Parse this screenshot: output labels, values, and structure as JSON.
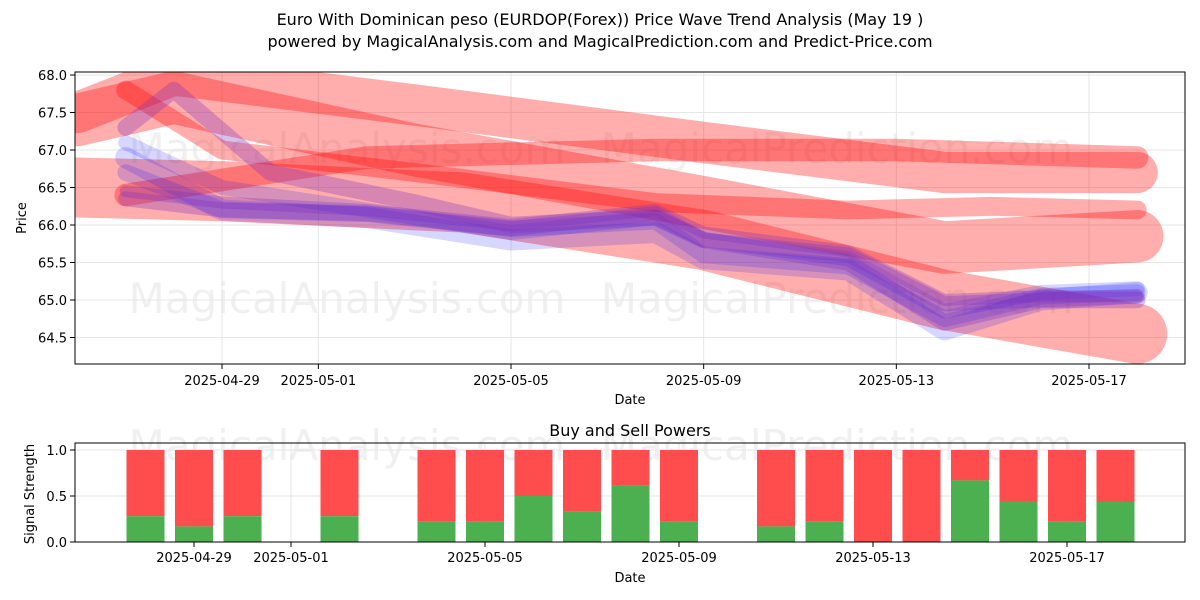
{
  "header": {
    "title": "Euro With Dominican peso (EURDOP(Forex)) Price Wave Trend Analysis (May 19 )",
    "subtitle": "powered by MagicalAnalysis.com and MagicalPrediction.com and Predict-Price.com"
  },
  "watermarks": [
    "MagicalAnalysis.com",
    "MagicalPrediction.com"
  ],
  "colors": {
    "red_band": "#ff0000",
    "blue_band": "#0000ff",
    "purple_band": "#7b2fbf",
    "buy": "#4caf50",
    "sell": "#ff4c4c",
    "grid": "#e6e6e6"
  },
  "chart_data": [
    {
      "type": "area",
      "title": "",
      "xlabel": "Date",
      "ylabel": "Price",
      "x_ticks": [
        "2025-04-29",
        "2025-05-01",
        "2025-05-05",
        "2025-05-09",
        "2025-05-13",
        "2025-05-17"
      ],
      "y_ticks": [
        "64.5",
        "65.0",
        "65.5",
        "66.0",
        "66.5",
        "67.0",
        "67.5",
        "68.0"
      ],
      "ylim": [
        64.15,
        68.05
      ],
      "xlim": [
        "2025-04-26",
        "2025-05-18"
      ],
      "grid": true,
      "red_bands": [
        {
          "x": [
            "2025-04-26",
            "2025-04-28",
            "2025-05-03",
            "2025-05-09",
            "2025-05-14",
            "2025-05-18"
          ],
          "y": [
            67.5,
            68.0,
            67.6,
            67.1,
            66.7,
            66.7
          ],
          "width": 0.55
        },
        {
          "x": [
            "2025-04-26",
            "2025-04-28",
            "2025-05-03",
            "2025-05-09",
            "2025-05-14",
            "2025-05-18"
          ],
          "y": [
            67.4,
            67.7,
            67.0,
            66.3,
            65.7,
            65.85
          ],
          "width": 0.7
        },
        {
          "x": [
            "2025-04-26",
            "2025-04-29",
            "2025-05-04",
            "2025-05-09",
            "2025-05-14",
            "2025-05-18"
          ],
          "y": [
            66.5,
            66.45,
            66.3,
            65.8,
            65.0,
            64.55
          ],
          "width": 0.8
        },
        {
          "x": [
            "2025-04-27",
            "2025-04-29",
            "2025-05-03",
            "2025-05-08",
            "2025-05-12",
            "2025-05-15",
            "2025-05-18"
          ],
          "y": [
            67.8,
            67.0,
            66.7,
            66.3,
            66.2,
            66.25,
            66.2
          ],
          "width": 0.25
        },
        {
          "x": [
            "2025-04-27",
            "2025-05-02",
            "2025-05-08",
            "2025-05-13",
            "2025-05-18"
          ],
          "y": [
            66.4,
            66.9,
            67.0,
            67.0,
            66.9
          ],
          "width": 0.3
        }
      ],
      "blue_bands": [
        {
          "x": [
            "2025-04-27",
            "2025-04-29",
            "2025-05-02",
            "2025-05-05",
            "2025-05-08",
            "2025-05-09",
            "2025-05-12",
            "2025-05-14",
            "2025-05-16",
            "2025-05-18"
          ],
          "y": [
            66.9,
            66.2,
            66.1,
            65.8,
            65.9,
            65.55,
            65.4,
            64.6,
            65.0,
            65.1
          ],
          "width": 0.28
        },
        {
          "x": [
            "2025-04-27",
            "2025-04-29",
            "2025-05-02",
            "2025-05-05",
            "2025-05-08",
            "2025-05-09",
            "2025-05-12",
            "2025-05-14",
            "2025-05-16",
            "2025-05-18"
          ],
          "y": [
            66.7,
            66.2,
            66.15,
            65.95,
            66.05,
            65.6,
            65.45,
            64.75,
            65.05,
            65.1
          ],
          "width": 0.22
        },
        {
          "x": [
            "2025-04-27",
            "2025-04-29",
            "2025-05-02",
            "2025-05-05",
            "2025-05-08",
            "2025-05-09",
            "2025-05-12",
            "2025-05-14",
            "2025-05-16",
            "2025-05-18"
          ],
          "y": [
            67.1,
            66.5,
            66.2,
            65.9,
            66.1,
            65.8,
            65.55,
            64.85,
            65.1,
            65.15
          ],
          "width": 0.2
        }
      ],
      "purple_bands": [
        {
          "x": [
            "2025-04-27",
            "2025-04-29",
            "2025-05-02",
            "2025-05-05",
            "2025-05-08",
            "2025-05-09",
            "2025-05-12",
            "2025-05-14",
            "2025-05-16",
            "2025-05-18"
          ],
          "y": [
            66.35,
            66.2,
            66.15,
            65.95,
            66.15,
            65.8,
            65.6,
            64.95,
            65.0,
            65.05
          ],
          "width": 0.2
        },
        {
          "x": [
            "2025-04-27",
            "2025-04-28",
            "2025-04-30",
            "2025-05-03",
            "2025-05-05",
            "2025-05-08",
            "2025-05-09",
            "2025-05-12",
            "2025-05-14",
            "2025-05-16",
            "2025-05-18"
          ],
          "y": [
            67.3,
            67.8,
            66.7,
            66.3,
            66.0,
            66.1,
            65.8,
            65.5,
            64.7,
            65.0,
            65.0
          ],
          "width": 0.22
        },
        {
          "x": [
            "2025-04-27",
            "2025-04-29",
            "2025-05-02",
            "2025-05-05",
            "2025-05-08",
            "2025-05-09",
            "2025-05-12",
            "2025-05-14",
            "2025-05-16",
            "2025-05-18"
          ],
          "y": [
            66.45,
            66.3,
            66.2,
            66.0,
            66.2,
            65.9,
            65.65,
            65.0,
            65.05,
            65.05
          ],
          "width": 0.16
        }
      ]
    },
    {
      "type": "bar",
      "title": "Buy and Sell Powers",
      "xlabel": "Date",
      "ylabel": "Signal Strength",
      "x_ticks": [
        "2025-04-29",
        "2025-05-01",
        "2025-05-05",
        "2025-05-09",
        "2025-05-13",
        "2025-05-17"
      ],
      "y_ticks": [
        "0.0",
        "0.5",
        "1.0"
      ],
      "ylim": [
        0,
        1.07
      ],
      "grid": true,
      "categories": [
        "2025-04-28",
        "2025-04-29",
        "2025-04-30",
        "2025-05-02",
        "2025-05-04",
        "2025-05-05",
        "2025-05-06",
        "2025-05-07",
        "2025-05-08",
        "2025-05-09",
        "2025-05-11",
        "2025-05-12",
        "2025-05-13",
        "2025-05-14",
        "2025-05-15",
        "2025-05-16",
        "2025-05-17",
        "2025-05-18"
      ],
      "series": [
        {
          "name": "Buy",
          "values": [
            0.28,
            0.17,
            0.28,
            0.28,
            0.22,
            0.22,
            0.5,
            0.33,
            0.61,
            0.22,
            0.17,
            0.22,
            0.0,
            0.0,
            0.67,
            0.44,
            0.22,
            0.44
          ]
        },
        {
          "name": "Sell",
          "values": [
            0.72,
            0.83,
            0.72,
            0.72,
            0.78,
            0.78,
            0.5,
            0.67,
            0.39,
            0.78,
            0.83,
            0.78,
            1.0,
            1.0,
            0.33,
            0.56,
            0.78,
            0.56
          ]
        }
      ]
    }
  ]
}
